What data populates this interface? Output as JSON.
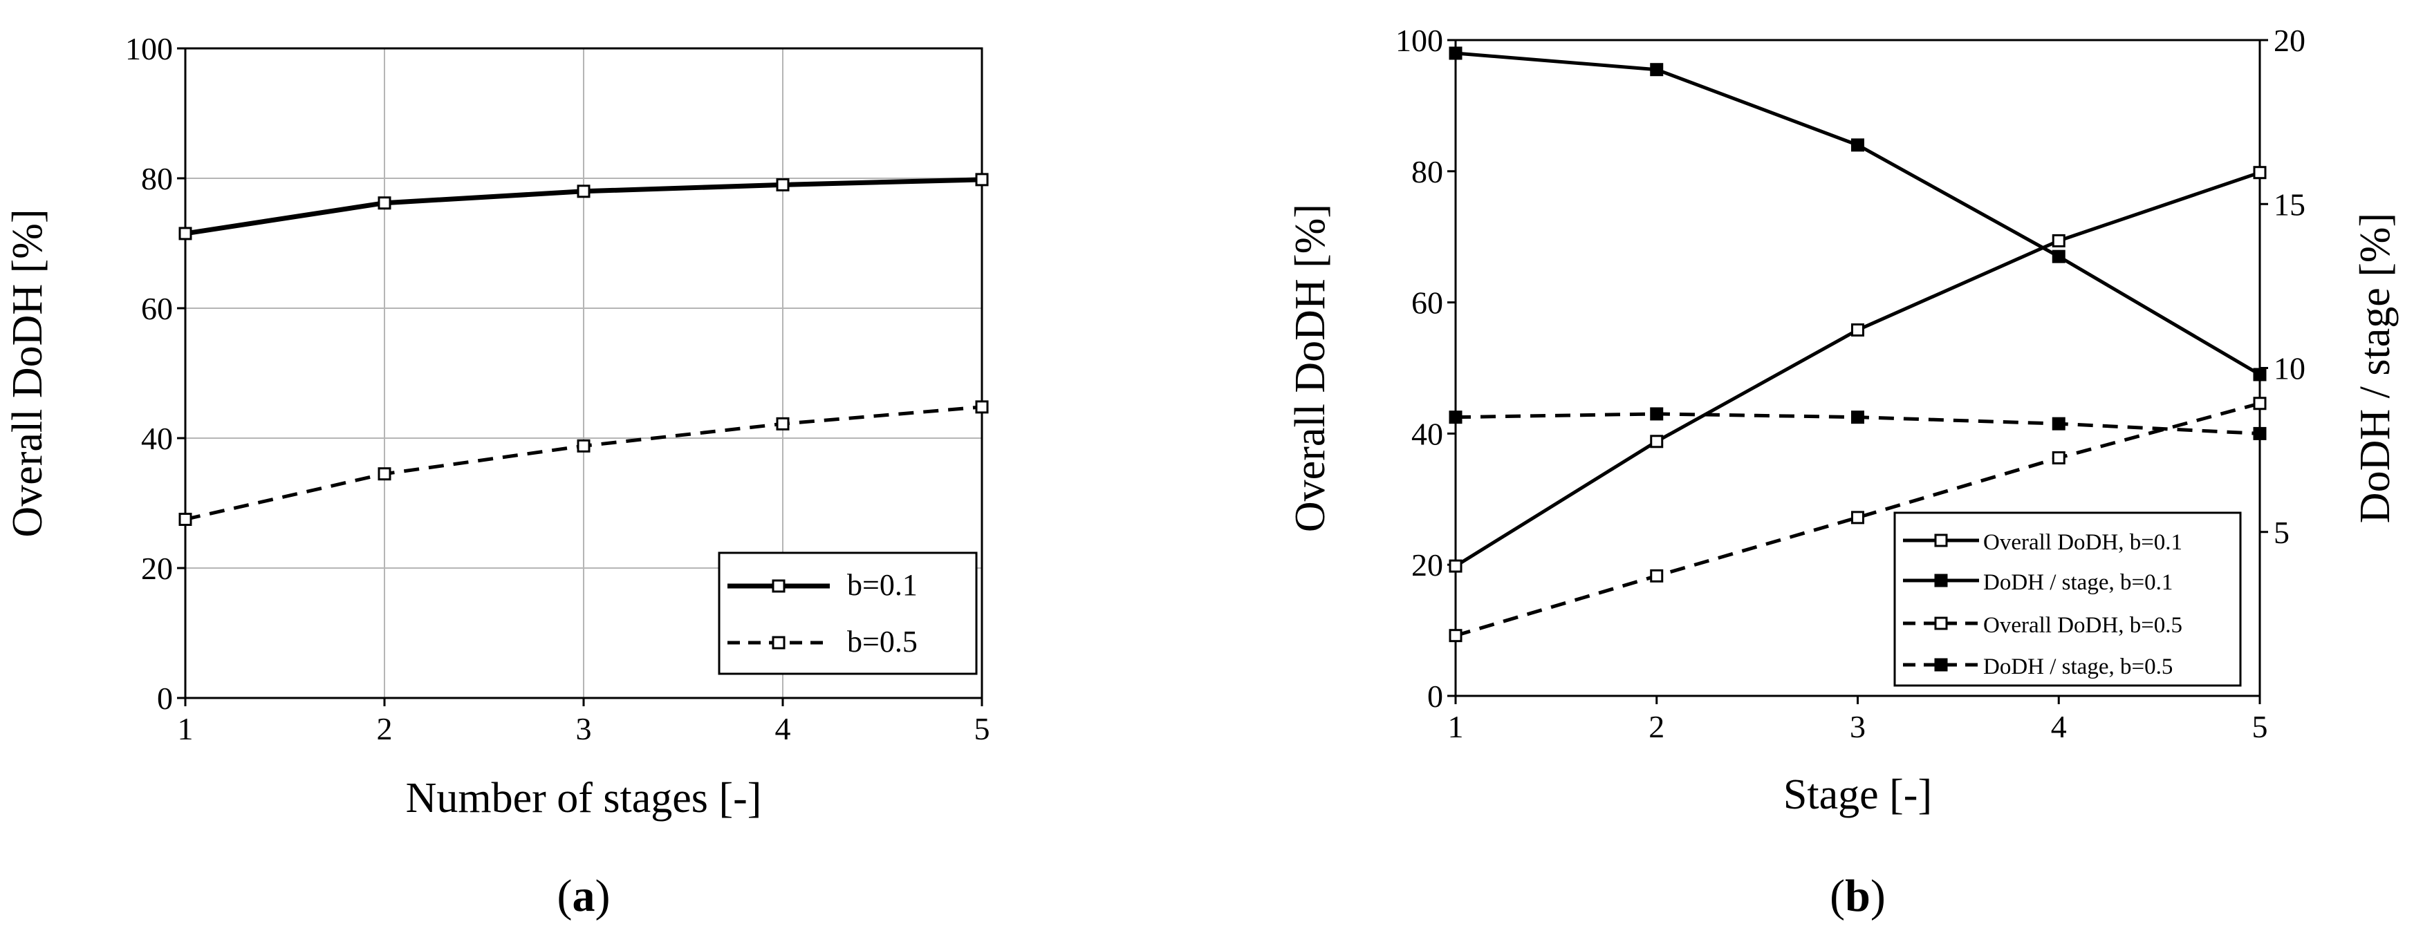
{
  "chart_data": [
    {
      "id": "a",
      "type": "line",
      "caption_open": "(",
      "caption_letter": "a",
      "caption_close": ")",
      "xlabel": "Number of stages [-]",
      "ylabel": "Overall DoDH [%]",
      "x": [
        1,
        2,
        3,
        4,
        5
      ],
      "xticks": [
        "1",
        "2",
        "3",
        "4",
        "5"
      ],
      "xlim": [
        1,
        5
      ],
      "ylim": [
        0,
        100
      ],
      "yticks": [
        "0",
        "20",
        "40",
        "60",
        "80",
        "100"
      ],
      "grid": true,
      "legend_position": "bottom-right",
      "series": [
        {
          "name": "b=0.1",
          "dash": "solid",
          "marker": "open-square",
          "values": [
            71.5,
            76.2,
            78.0,
            79.0,
            79.8
          ]
        },
        {
          "name": "b=0.5",
          "dash": "dashed",
          "marker": "open-square",
          "values": [
            27.5,
            34.5,
            38.8,
            42.2,
            44.8
          ]
        }
      ]
    },
    {
      "id": "b",
      "type": "line",
      "caption_open": "(",
      "caption_letter": "b",
      "caption_close": ")",
      "xlabel": "Stage [-]",
      "ylabel": "Overall DoDH [%]",
      "y2label": "DoDH / stage [%]",
      "x": [
        1,
        2,
        3,
        4,
        5
      ],
      "xticks": [
        "1",
        "2",
        "3",
        "4",
        "5"
      ],
      "xlim": [
        1,
        5
      ],
      "ylim": [
        0,
        100
      ],
      "yticks": [
        "0",
        "20",
        "40",
        "60",
        "80",
        "100"
      ],
      "y2lim": [
        0,
        20
      ],
      "y2ticks": [
        "5",
        "10",
        "15",
        "20"
      ],
      "grid": false,
      "legend_position": "bottom-right",
      "series": [
        {
          "name": "Overall DoDH, b=0.1",
          "axis": "left",
          "dash": "solid",
          "marker": "open-square",
          "values": [
            19.8,
            38.8,
            55.8,
            69.4,
            79.8
          ]
        },
        {
          "name": "DoDH / stage, b=0.1",
          "axis": "right",
          "dash": "solid",
          "marker": "filled-square",
          "values": [
            19.6,
            19.1,
            16.8,
            13.4,
            9.8
          ]
        },
        {
          "name": "Overall DoDH, b=0.5",
          "axis": "left",
          "dash": "dashed",
          "marker": "open-square",
          "values": [
            9.2,
            18.3,
            27.2,
            36.3,
            44.6
          ]
        },
        {
          "name": "DoDH / stage, b=0.5",
          "axis": "right",
          "dash": "dashed",
          "marker": "filled-square",
          "values": [
            8.5,
            8.6,
            8.5,
            8.3,
            8.0
          ]
        }
      ]
    }
  ]
}
